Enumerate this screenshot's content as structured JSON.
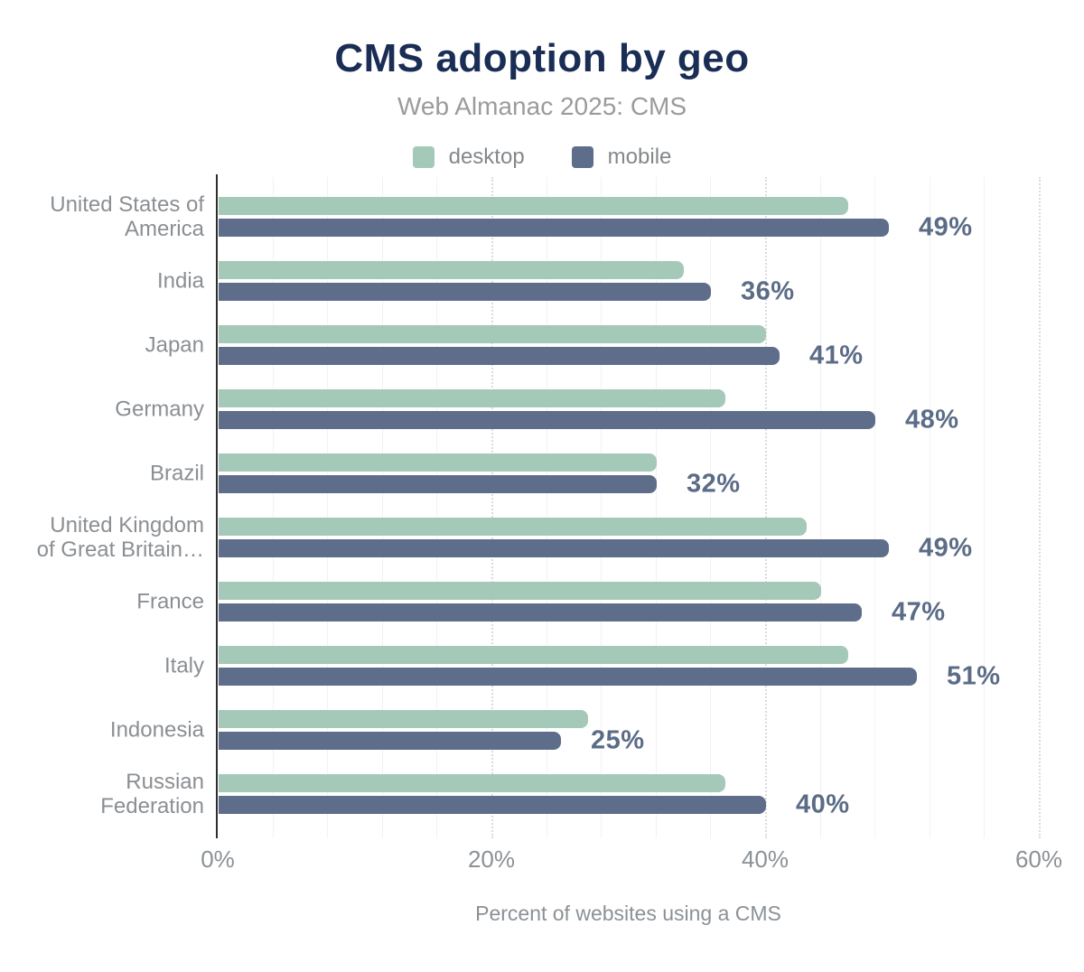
{
  "title": "CMS adoption by geo",
  "subtitle": "Web Almanac 2025: CMS",
  "legend": {
    "items": [
      {
        "label": "desktop",
        "color": "#a5c9b8"
      },
      {
        "label": "mobile",
        "color": "#5e6e8a"
      }
    ]
  },
  "colors": {
    "background": "#ffffff",
    "title": "#1a2d55",
    "subtitle": "#9b9b9b",
    "legend_text": "#84888b",
    "category_label": "#8b8f93",
    "value_label": "#5b6c87",
    "axis_text": "#8b9196",
    "axis_line": "#2e2e2e",
    "grid_minor": "#f2f2f2",
    "grid_major": "#cccccc",
    "desktop": "#a5c9b8",
    "mobile": "#5e6e8a"
  },
  "chart_data": {
    "type": "bar",
    "orientation": "horizontal",
    "title": "CMS adoption by geo",
    "subtitle": "Web Almanac 2025: CMS",
    "xlabel": "Percent of websites using a CMS",
    "ylabel": "",
    "xlim": [
      0,
      60
    ],
    "x_ticks": [
      {
        "label": "0%",
        "value": 0
      },
      {
        "label": "20%",
        "value": 20
      },
      {
        "label": "40%",
        "value": 40
      },
      {
        "label": "60%",
        "value": 60
      }
    ],
    "grid": {
      "minor_step_pct": 4,
      "major_step_pct": 20,
      "major_style": "dotted"
    },
    "legend_position": "top",
    "categories": [
      "United States of\nAmerica",
      "India",
      "Japan",
      "Germany",
      "Brazil",
      "United Kingdom\nof Great Britain…",
      "France",
      "Italy",
      "Indonesia",
      "Russian\nFederation"
    ],
    "series": [
      {
        "name": "desktop",
        "color": "#a5c9b8",
        "values": [
          46,
          34,
          40,
          37,
          32,
          43,
          44,
          46,
          27,
          37
        ]
      },
      {
        "name": "mobile",
        "color": "#5e6e8a",
        "values": [
          49,
          36,
          41,
          48,
          32,
          49,
          47,
          51,
          25,
          40
        ]
      }
    ],
    "value_labels": [
      "49%",
      "36%",
      "41%",
      "48%",
      "32%",
      "49%",
      "47%",
      "51%",
      "25%",
      "40%"
    ],
    "value_labels_series": "mobile"
  }
}
